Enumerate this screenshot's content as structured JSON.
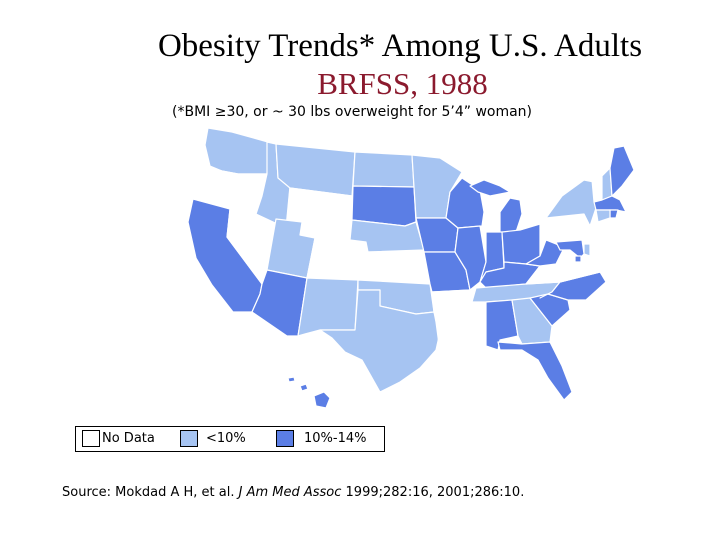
{
  "title": "Obesity Trends* Among U.S. Adults",
  "subtitle": "BRFSS, 1988",
  "note": "(*BMI ≥30, or ~ 30 lbs overweight for 5’4” woman)",
  "colors": {
    "no_data": "#ffffff",
    "lt10": "#a6c4f2",
    "10to14": "#5b7ee5",
    "border": "#000000"
  },
  "legend": [
    {
      "key": "no_data",
      "label": "No Data"
    },
    {
      "key": "lt10",
      "label": "<10%"
    },
    {
      "key": "10to14",
      "label": "10%-14%"
    }
  ],
  "source": {
    "prefix": "Source: Mokdad A H, et al. ",
    "journal": "J Am Med Assoc",
    "suffix": " 1999;282:16, 2001;286:10."
  },
  "states": {
    "WA": "lt10",
    "OR": "no_data",
    "CA": "10to14",
    "NV": "no_data",
    "ID": "lt10",
    "MT": "lt10",
    "WY": "no_data",
    "UT": "lt10",
    "AZ": "10to14",
    "CO": "no_data",
    "NM": "lt10",
    "ND": "lt10",
    "SD": "10to14",
    "NE": "lt10",
    "KS": "no_data",
    "OK": "lt10",
    "TX": "lt10",
    "MN": "lt10",
    "IA": "10to14",
    "MO": "10to14",
    "AR": "no_data",
    "LA": "no_data",
    "WI": "10to14",
    "IL": "10to14",
    "MS": "no_data",
    "MI": "10to14",
    "IN": "10to14",
    "OH": "10to14",
    "KY": "10to14",
    "TN": "lt10",
    "AL": "10to14",
    "GA": "lt10",
    "FL": "10to14",
    "SC": "10to14",
    "NC": "10to14",
    "VA": "no_data",
    "WV": "10to14",
    "PA": "no_data",
    "NY": "lt10",
    "VT": "no_data",
    "NH": "lt10",
    "ME": "10to14",
    "MA": "10to14",
    "RI": "10to14",
    "CT": "lt10",
    "NJ": "no_data",
    "DE": "lt10",
    "MD": "10to14",
    "DC": "10to14",
    "AK": "no_data",
    "HI": "10to14"
  }
}
